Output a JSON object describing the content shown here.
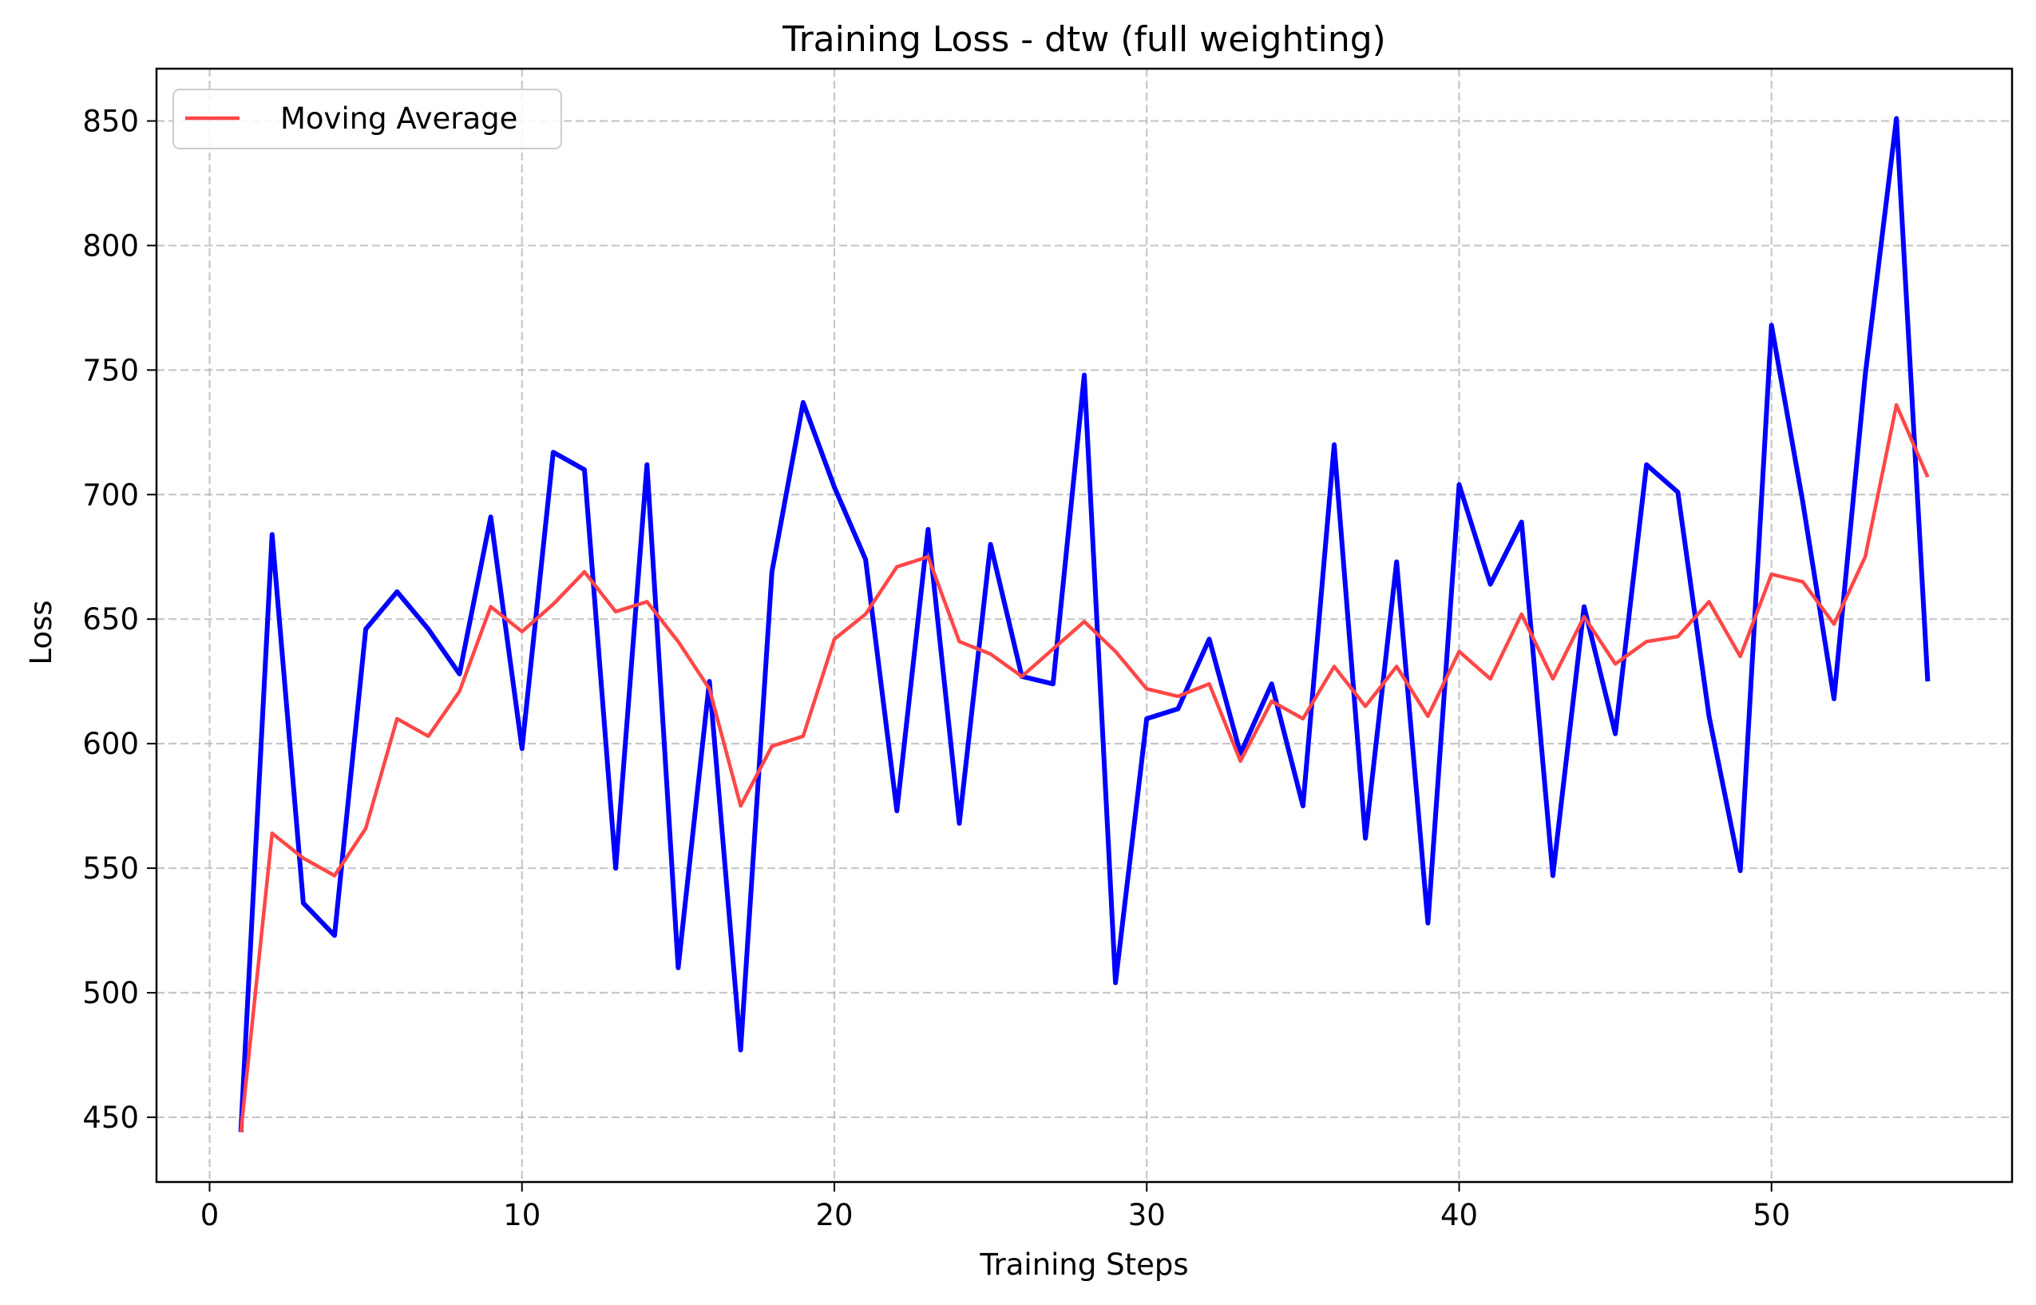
{
  "chart_data": {
    "type": "line",
    "title": "Training Loss - dtw (full weighting)",
    "xlabel": "Training Steps",
    "ylabel": "Loss",
    "xlim": [
      -1.7,
      57.7
    ],
    "ylim": [
      424,
      871
    ],
    "xticks": [
      0,
      10,
      20,
      30,
      40,
      50
    ],
    "yticks": [
      450,
      500,
      550,
      600,
      650,
      700,
      750,
      800,
      850
    ],
    "grid": true,
    "legend_position": "top-left",
    "series": [
      {
        "color": "#0000ff",
        "x": [
          1,
          2,
          3,
          4,
          5,
          6,
          7,
          8,
          9,
          10,
          11,
          12,
          13,
          14,
          15,
          16,
          17,
          18,
          19,
          20,
          21,
          22,
          23,
          24,
          25,
          26,
          27,
          28,
          29,
          30,
          31,
          32,
          33,
          34,
          35,
          36,
          37,
          38,
          39,
          40,
          41,
          42,
          43,
          44,
          45,
          46,
          47,
          48,
          49,
          50,
          51,
          52,
          53,
          54,
          55
        ],
        "values": [
          444,
          684,
          536,
          523,
          646,
          661,
          646,
          628,
          691,
          598,
          717,
          710,
          550,
          712,
          510,
          625,
          477,
          669,
          737,
          703,
          674,
          573,
          686,
          568,
          680,
          627,
          624,
          748,
          504,
          610,
          614,
          642,
          596,
          624,
          575,
          720,
          562,
          673,
          528,
          704,
          664,
          689,
          547,
          655,
          604,
          712,
          701,
          611,
          549,
          768,
          697,
          618,
          748,
          851,
          625
        ]
      },
      {
        "name": "Moving Average",
        "color": "#ff4747",
        "x": [
          1,
          2,
          3,
          4,
          5,
          6,
          7,
          8,
          9,
          10,
          11,
          12,
          13,
          14,
          15,
          16,
          17,
          18,
          19,
          20,
          21,
          22,
          23,
          24,
          25,
          26,
          27,
          28,
          29,
          30,
          31,
          32,
          33,
          34,
          35,
          36,
          37,
          38,
          39,
          40,
          41,
          42,
          43,
          44,
          45,
          46,
          47,
          48,
          49,
          50,
          51,
          52,
          53,
          54,
          55
        ],
        "values": [
          444,
          564,
          554,
          547,
          566,
          610,
          603,
          621,
          655,
          645,
          656,
          669,
          653,
          657,
          641,
          622,
          575,
          599,
          603,
          642,
          652,
          671,
          675,
          641,
          636,
          627,
          638,
          649,
          637,
          622,
          619,
          624,
          593,
          617,
          610,
          631,
          615,
          631,
          611,
          637,
          626,
          652,
          626,
          651,
          632,
          641,
          643,
          657,
          635,
          668,
          665,
          648,
          675,
          736,
          707
        ]
      }
    ]
  }
}
